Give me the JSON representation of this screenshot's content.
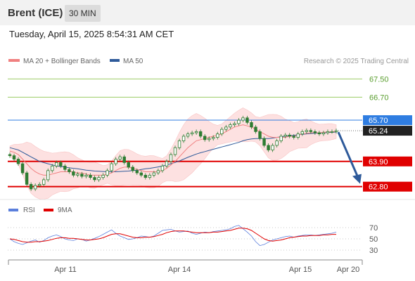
{
  "header": {
    "title": "Brent (ICE)",
    "timeframe": "30 MIN"
  },
  "datetime": "Tuesday, April 15, 2025 8:54:31 AM CET",
  "legend": {
    "ma20": "MA 20 + Bollinger Bands",
    "ma50": "MA 50",
    "credit": "Research © 2025 Trading Central"
  },
  "colors": {
    "ma20": "#f08080",
    "ma50": "#2e5a9a",
    "bollinger_fill": "#fde1e1",
    "resistance_green": "#9ccc65",
    "support_red": "#e00000",
    "pivot_blue": "#2f7de1",
    "arrow": "#2e5a9a",
    "rsi": "#5b7fdc",
    "rsi_ma": "#e00000",
    "candle": "#2e7d32"
  },
  "levels": [
    {
      "label": "67.50",
      "value": 67.5,
      "kind": "resistance"
    },
    {
      "label": "66.70",
      "value": 66.7,
      "kind": "resistance"
    },
    {
      "label": "65.70",
      "value": 65.7,
      "kind": "pivot"
    },
    {
      "label": "65.24",
      "value": 65.24,
      "kind": "last"
    },
    {
      "label": "63.90",
      "value": 63.9,
      "kind": "support"
    },
    {
      "label": "62.80",
      "value": 62.8,
      "kind": "support"
    }
  ],
  "oscillator": {
    "legend_rsi": "RSI",
    "legend_ma": "9MA",
    "levels": [
      {
        "label": "70",
        "value": 70
      },
      {
        "label": "50",
        "value": 50
      },
      {
        "label": "30",
        "value": 30
      }
    ]
  },
  "x_axis": [
    "Apr 11",
    "Apr 14",
    "Apr 15",
    "Apr 20"
  ],
  "chart_data": {
    "type": "line",
    "title": "",
    "y_price_range": [
      62.3,
      68.0
    ],
    "close_prices": [
      64.15,
      64.0,
      63.8,
      63.4,
      62.9,
      62.7,
      62.85,
      62.9,
      63.1,
      63.5,
      63.7,
      63.85,
      63.7,
      63.55,
      63.45,
      63.3,
      63.35,
      63.25,
      63.3,
      63.2,
      63.1,
      63.2,
      63.3,
      63.5,
      63.8,
      64.0,
      64.1,
      63.85,
      63.65,
      63.5,
      63.4,
      63.3,
      63.2,
      63.3,
      63.4,
      63.5,
      63.7,
      63.9,
      64.2,
      64.5,
      64.8,
      65.0,
      65.1,
      65.15,
      65.2,
      65.0,
      64.85,
      64.9,
      64.95,
      65.1,
      65.3,
      65.4,
      65.5,
      65.55,
      65.7,
      65.8,
      65.6,
      65.4,
      65.2,
      64.9,
      64.6,
      64.4,
      64.6,
      64.8,
      65.0,
      65.05,
      65.0,
      64.95,
      65.1,
      65.2,
      65.25,
      65.2,
      65.15,
      65.1,
      65.15,
      65.2,
      65.2,
      65.24
    ],
    "series": [
      {
        "name": "MA 20",
        "values": [
          64.35,
          64.3,
          64.2,
          64.0,
          63.8,
          63.6,
          63.45,
          63.35,
          63.3,
          63.3,
          63.35,
          63.4,
          63.45,
          63.45,
          63.45,
          63.45,
          63.4,
          63.4,
          63.35,
          63.3,
          63.3,
          63.3,
          63.3,
          63.35,
          63.4,
          63.5,
          63.6,
          63.65,
          63.65,
          63.6,
          63.55,
          63.5,
          63.45,
          63.45,
          63.45,
          63.45,
          63.5,
          63.6,
          63.75,
          63.9,
          64.1,
          64.3,
          64.5,
          64.65,
          64.8,
          64.85,
          64.9,
          64.95,
          65.0,
          65.05,
          65.1,
          65.2,
          65.3,
          65.4,
          65.45,
          65.5,
          65.45,
          65.4,
          65.3,
          65.2,
          65.1,
          65.0,
          64.95,
          64.95,
          64.95,
          64.95,
          65.0,
          65.0,
          65.05,
          65.1,
          65.12,
          65.15,
          65.15,
          65.15,
          65.17,
          65.18,
          65.2,
          65.2
        ]
      },
      {
        "name": "MA 50",
        "values": [
          64.5,
          64.45,
          64.4,
          64.3,
          64.2,
          64.1,
          64.0,
          63.9,
          63.85,
          63.8,
          63.75,
          63.7,
          63.68,
          63.65,
          63.62,
          63.6,
          63.58,
          63.55,
          63.52,
          63.5,
          63.48,
          63.47,
          63.46,
          63.45,
          63.45,
          63.45,
          63.46,
          63.47,
          63.48,
          63.5,
          63.52,
          63.55,
          63.58,
          63.6,
          63.63,
          63.66,
          63.7,
          63.75,
          63.8,
          63.86,
          63.92,
          64.0,
          64.08,
          64.15,
          64.22,
          64.28,
          64.33,
          64.38,
          64.43,
          64.48,
          64.53,
          64.58,
          64.63,
          64.68,
          64.73,
          64.8,
          64.85,
          64.88,
          64.9,
          64.9,
          64.9,
          64.9,
          64.92,
          64.95,
          64.97,
          65.0,
          65.02,
          65.04,
          65.06,
          65.08,
          65.1,
          65.12,
          65.13,
          65.14,
          65.15,
          65.16,
          65.17,
          65.18
        ]
      },
      {
        "name": "RSI",
        "values": [
          50,
          45,
          42,
          40,
          43,
          46,
          48,
          44,
          47,
          52,
          55,
          57,
          54,
          50,
          48,
          47,
          50,
          49,
          46,
          48,
          51,
          54,
          58,
          62,
          66,
          60,
          55,
          52,
          49,
          50,
          52,
          55,
          54,
          53,
          55,
          60,
          65,
          66,
          67,
          64,
          62,
          63,
          64,
          60,
          58,
          60,
          62,
          61,
          63,
          64,
          65,
          66,
          68,
          72,
          74,
          68,
          62,
          55,
          45,
          38,
          40,
          44,
          48,
          50,
          52,
          54,
          55,
          53,
          55,
          56,
          57,
          57,
          56,
          57,
          58,
          59,
          60,
          62
        ]
      },
      {
        "name": "9MA",
        "values": [
          50,
          49,
          47,
          45,
          44,
          44,
          45,
          45,
          46,
          47,
          49,
          51,
          52,
          52,
          51,
          51,
          50,
          49,
          48,
          48,
          49,
          50,
          52,
          55,
          58,
          59,
          59,
          57,
          55,
          53,
          52,
          52,
          53,
          53,
          54,
          56,
          58,
          61,
          63,
          64,
          64,
          64,
          63,
          62,
          61,
          61,
          61,
          61,
          62,
          62,
          63,
          64,
          65,
          67,
          69,
          69,
          68,
          65,
          60,
          55,
          50,
          47,
          46,
          47,
          48,
          50,
          52,
          53,
          54,
          55,
          55,
          56,
          56,
          56,
          57,
          57,
          58,
          58
        ]
      }
    ]
  }
}
